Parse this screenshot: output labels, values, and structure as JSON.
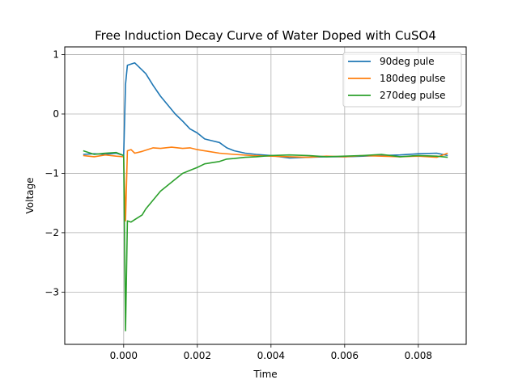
{
  "chart_data": {
    "type": "line",
    "title": "Free Induction Decay Curve of Water Doped with CuSO4",
    "xlabel": "Time",
    "ylabel": "Voltage",
    "xlim": [
      -0.0016,
      0.0093
    ],
    "ylim": [
      -3.88,
      1.13
    ],
    "xticks": [
      0.0,
      0.002,
      0.004,
      0.006,
      0.008
    ],
    "xtick_labels": [
      "0.000",
      "0.002",
      "0.004",
      "0.006",
      "0.008"
    ],
    "yticks": [
      -3,
      -2,
      -1,
      0,
      1
    ],
    "ytick_labels": [
      "−3",
      "−2",
      "−1",
      "0",
      "1"
    ],
    "grid": true,
    "legend_position": "top-right",
    "series": [
      {
        "name": "90deg pule",
        "color": "#1f77b4",
        "x": [
          -0.0011,
          -0.0008,
          -0.0005,
          -0.0002,
          0.0,
          5e-05,
          0.0001,
          0.0002,
          0.0003,
          0.0004,
          0.0006,
          0.0008,
          0.001,
          0.0012,
          0.0014,
          0.0016,
          0.0018,
          0.002,
          0.0022,
          0.0024,
          0.0026,
          0.0028,
          0.003,
          0.0033,
          0.0036,
          0.004,
          0.0045,
          0.005,
          0.0055,
          0.006,
          0.0065,
          0.007,
          0.0075,
          0.008,
          0.0085,
          0.0088
        ],
        "y": [
          -0.68,
          -0.67,
          -0.68,
          -0.66,
          -0.7,
          0.5,
          0.82,
          0.84,
          0.86,
          0.8,
          0.68,
          0.48,
          0.3,
          0.15,
          0.0,
          -0.12,
          -0.25,
          -0.32,
          -0.42,
          -0.45,
          -0.48,
          -0.57,
          -0.62,
          -0.66,
          -0.68,
          -0.7,
          -0.74,
          -0.73,
          -0.72,
          -0.72,
          -0.71,
          -0.7,
          -0.69,
          -0.67,
          -0.66,
          -0.7
        ]
      },
      {
        "name": "180deg pulse",
        "color": "#ff7f0e",
        "x": [
          -0.0011,
          -0.0008,
          -0.0005,
          -0.0002,
          0.0,
          5e-05,
          0.0001,
          0.0002,
          0.0003,
          0.0005,
          0.0008,
          0.001,
          0.0013,
          0.0016,
          0.0018,
          0.002,
          0.0023,
          0.0026,
          0.003,
          0.0035,
          0.004,
          0.0045,
          0.005,
          0.0055,
          0.006,
          0.0065,
          0.007,
          0.0075,
          0.008,
          0.0085,
          0.0088
        ],
        "y": [
          -0.7,
          -0.72,
          -0.69,
          -0.71,
          -0.72,
          -1.8,
          -0.62,
          -0.6,
          -0.66,
          -0.63,
          -0.57,
          -0.58,
          -0.56,
          -0.58,
          -0.57,
          -0.6,
          -0.63,
          -0.66,
          -0.68,
          -0.7,
          -0.71,
          -0.72,
          -0.73,
          -0.71,
          -0.72,
          -0.7,
          -0.71,
          -0.72,
          -0.71,
          -0.73,
          -0.66
        ]
      },
      {
        "name": "270deg pulse",
        "color": "#2ca02c",
        "x": [
          -0.0011,
          -0.0008,
          -0.0005,
          -0.0002,
          0.0,
          5e-05,
          0.0001,
          0.0002,
          0.0003,
          0.0005,
          0.0006,
          0.0008,
          0.001,
          0.0012,
          0.0014,
          0.0016,
          0.0018,
          0.002,
          0.0022,
          0.0024,
          0.0026,
          0.0028,
          0.003,
          0.0033,
          0.0036,
          0.004,
          0.0045,
          0.005,
          0.0055,
          0.006,
          0.0065,
          0.007,
          0.0075,
          0.008,
          0.0085,
          0.0088
        ],
        "y": [
          -0.62,
          -0.68,
          -0.66,
          -0.65,
          -0.7,
          -3.65,
          -1.8,
          -1.82,
          -1.78,
          -1.7,
          -1.6,
          -1.45,
          -1.3,
          -1.2,
          -1.1,
          -1.0,
          -0.95,
          -0.9,
          -0.84,
          -0.82,
          -0.8,
          -0.76,
          -0.75,
          -0.73,
          -0.72,
          -0.7,
          -0.69,
          -0.7,
          -0.72,
          -0.71,
          -0.7,
          -0.68,
          -0.72,
          -0.7,
          -0.71,
          -0.73
        ]
      }
    ]
  }
}
